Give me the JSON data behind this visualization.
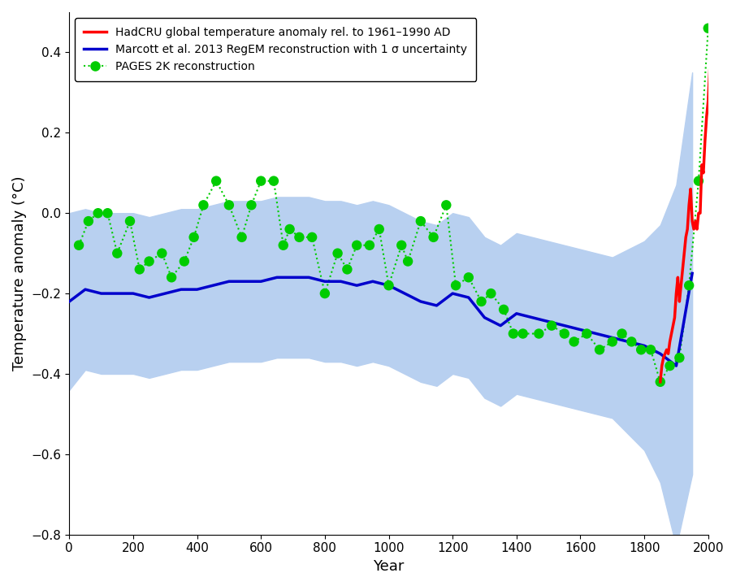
{
  "title": "",
  "xlabel": "Year",
  "ylabel": "Temperature anomaly (°C)",
  "xlim": [
    0,
    2000
  ],
  "ylim": [
    -0.8,
    0.5
  ],
  "yticks": [
    -0.8,
    -0.6,
    -0.4,
    -0.2,
    0.0,
    0.2,
    0.4
  ],
  "xticks": [
    0,
    200,
    400,
    600,
    800,
    1000,
    1200,
    1400,
    1600,
    1800,
    2000
  ],
  "marcott_line_color": "#0000cc",
  "marcott_shade_color": "#b8d0f0",
  "hadcru_color": "#ff0000",
  "pages_color": "#00cc00",
  "legend_labels": [
    "HadCRU global temperature anomaly rel. to 1961–1990 AD",
    "Marcott et al. 2013 RegEM reconstruction with 1 σ uncertainty",
    "PAGES 2K reconstruction"
  ],
  "marcott_years": [
    0,
    50,
    100,
    150,
    200,
    250,
    300,
    350,
    400,
    450,
    500,
    550,
    600,
    650,
    700,
    750,
    800,
    850,
    900,
    950,
    1000,
    1050,
    1100,
    1150,
    1200,
    1250,
    1300,
    1350,
    1400,
    1450,
    1500,
    1550,
    1600,
    1650,
    1700,
    1750,
    1800,
    1850,
    1900,
    1950
  ],
  "marcott_temp": [
    -0.22,
    -0.19,
    -0.2,
    -0.2,
    -0.2,
    -0.21,
    -0.2,
    -0.19,
    -0.19,
    -0.18,
    -0.17,
    -0.17,
    -0.17,
    -0.16,
    -0.16,
    -0.16,
    -0.17,
    -0.17,
    -0.18,
    -0.17,
    -0.18,
    -0.2,
    -0.22,
    -0.23,
    -0.2,
    -0.21,
    -0.26,
    -0.28,
    -0.25,
    -0.26,
    -0.27,
    -0.28,
    -0.29,
    -0.3,
    -0.31,
    -0.32,
    -0.33,
    -0.35,
    -0.38,
    -0.15
  ],
  "marcott_upper": [
    -0.0,
    0.01,
    0.0,
    0.0,
    0.0,
    -0.01,
    0.0,
    0.01,
    0.01,
    0.02,
    0.03,
    0.03,
    0.03,
    0.04,
    0.04,
    0.04,
    0.03,
    0.03,
    0.02,
    0.03,
    0.02,
    0.0,
    -0.02,
    -0.03,
    0.0,
    -0.01,
    -0.06,
    -0.08,
    -0.05,
    -0.06,
    -0.07,
    -0.08,
    -0.09,
    -0.1,
    -0.11,
    -0.09,
    -0.07,
    -0.03,
    0.07,
    0.35
  ],
  "marcott_lower": [
    -0.44,
    -0.39,
    -0.4,
    -0.4,
    -0.4,
    -0.41,
    -0.4,
    -0.39,
    -0.39,
    -0.38,
    -0.37,
    -0.37,
    -0.37,
    -0.36,
    -0.36,
    -0.36,
    -0.37,
    -0.37,
    -0.38,
    -0.37,
    -0.38,
    -0.4,
    -0.42,
    -0.43,
    -0.4,
    -0.41,
    -0.46,
    -0.48,
    -0.45,
    -0.46,
    -0.47,
    -0.48,
    -0.49,
    -0.5,
    -0.51,
    -0.55,
    -0.59,
    -0.67,
    -0.83,
    -0.65
  ],
  "pages_years": [
    30,
    60,
    90,
    120,
    150,
    190,
    220,
    250,
    290,
    320,
    360,
    390,
    420,
    460,
    500,
    540,
    570,
    600,
    640,
    670,
    690,
    720,
    760,
    800,
    840,
    870,
    900,
    940,
    970,
    1000,
    1040,
    1060,
    1100,
    1140,
    1180,
    1210,
    1250,
    1290,
    1320,
    1360,
    1390,
    1420,
    1470,
    1510,
    1550,
    1580,
    1620,
    1660,
    1700,
    1730,
    1760,
    1790,
    1820,
    1850,
    1880,
    1910,
    1940,
    1970,
    2000
  ],
  "pages_temp": [
    -0.08,
    -0.02,
    0.0,
    0.0,
    -0.1,
    -0.02,
    -0.14,
    -0.12,
    -0.1,
    -0.16,
    -0.12,
    -0.06,
    0.02,
    0.08,
    0.02,
    -0.06,
    0.02,
    0.08,
    0.08,
    -0.08,
    -0.04,
    -0.06,
    -0.06,
    -0.2,
    -0.1,
    -0.14,
    -0.08,
    -0.08,
    -0.04,
    -0.18,
    -0.08,
    -0.12,
    -0.02,
    -0.06,
    0.02,
    -0.18,
    -0.16,
    -0.22,
    -0.2,
    -0.24,
    -0.3,
    -0.3,
    -0.3,
    -0.28,
    -0.3,
    -0.32,
    -0.3,
    -0.34,
    -0.32,
    -0.3,
    -0.32,
    -0.34,
    -0.34,
    -0.42,
    -0.38,
    -0.36,
    -0.18,
    0.08,
    0.46
  ],
  "hadcru_years": [
    1850,
    1855,
    1860,
    1865,
    1870,
    1875,
    1880,
    1885,
    1890,
    1895,
    1900,
    1905,
    1910,
    1915,
    1920,
    1925,
    1930,
    1935,
    1940,
    1945,
    1950,
    1955,
    1960,
    1965,
    1970,
    1975,
    1980,
    1985,
    1990,
    1995,
    2000,
    2005,
    2010
  ],
  "hadcru_temp": [
    -0.42,
    -0.38,
    -0.36,
    -0.35,
    -0.34,
    -0.35,
    -0.32,
    -0.3,
    -0.28,
    -0.26,
    -0.2,
    -0.16,
    -0.22,
    -0.18,
    -0.14,
    -0.1,
    -0.06,
    -0.04,
    0.02,
    0.06,
    -0.02,
    -0.04,
    -0.02,
    -0.04,
    0.0,
    0.0,
    0.12,
    0.1,
    0.18,
    0.24,
    0.28,
    0.36,
    0.44
  ]
}
